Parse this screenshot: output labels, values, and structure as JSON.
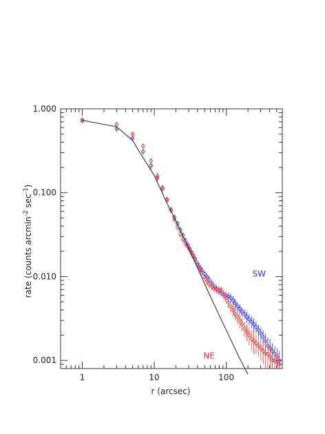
{
  "chart_data": {
    "type": "scatter",
    "title": "",
    "xlabel": "r (arcsec)",
    "ylabel_main": "rate (counts arcmin",
    "ylabel_exp1": "-2",
    "ylabel_mid": " sec",
    "ylabel_exp2": "-1",
    "ylabel_end": ")",
    "x_scale": "log",
    "y_scale": "log",
    "xlim": [
      0.5,
      600
    ],
    "ylim": [
      0.0008,
      1.0
    ],
    "x_ticks": [
      {
        "value": 1,
        "label": "1"
      },
      {
        "value": 10,
        "label": "10"
      },
      {
        "value": 100,
        "label": "100"
      }
    ],
    "y_ticks": [
      {
        "value": 1.0,
        "label": "1.000"
      },
      {
        "value": 0.1,
        "label": "0.100"
      },
      {
        "value": 0.01,
        "label": "0.010"
      },
      {
        "value": 0.001,
        "label": "0.001"
      }
    ],
    "grid": false,
    "annotations": [
      {
        "text": "SW",
        "x": 230,
        "y": 0.01,
        "color": "#3333ee"
      },
      {
        "text": "NE",
        "x": 48,
        "y": 0.00105,
        "color": "#ee3333"
      }
    ],
    "series": [
      {
        "color": "#3333ee",
        "marker": "open-circle",
        "x": [
          1,
          3,
          5,
          7,
          9,
          11,
          13,
          15,
          17,
          19,
          21,
          23,
          25,
          27,
          29,
          31,
          33,
          35,
          37,
          40,
          43,
          46,
          50,
          54,
          58,
          63,
          68,
          73,
          79,
          85,
          92,
          99,
          107,
          115,
          124,
          133,
          143,
          154,
          166,
          179,
          193,
          208,
          224,
          241,
          260,
          280,
          302,
          325,
          350,
          377,
          406,
          437,
          471,
          507,
          546
        ],
        "y": [
          0.72,
          0.58,
          0.45,
          0.31,
          0.21,
          0.15,
          0.112,
          0.082,
          0.063,
          0.051,
          0.043,
          0.036,
          0.031,
          0.027,
          0.024,
          0.0215,
          0.0195,
          0.0178,
          0.0162,
          0.0142,
          0.0128,
          0.0118,
          0.0108,
          0.0099,
          0.0091,
          0.0083,
          0.0076,
          0.0071,
          0.0067,
          0.0064,
          0.0061,
          0.0059,
          0.0058,
          0.0056,
          0.0052,
          0.0048,
          0.0044,
          0.0041,
          0.0038,
          0.0036,
          0.0033,
          0.0031,
          0.0029,
          0.0027,
          0.0025,
          0.0023,
          0.0021,
          0.0019,
          0.0017,
          0.0015,
          0.0014,
          0.0013,
          0.0012,
          0.0011,
          0.001
        ],
        "yerr": [
          0.05,
          0.05,
          0.04,
          0.03,
          0.02,
          0.015,
          0.01,
          0.007,
          0.005,
          0.004,
          0.0035,
          0.003,
          0.0025,
          0.0022,
          0.002,
          0.0018,
          0.0016,
          0.0015,
          0.0014,
          0.0013,
          0.0012,
          0.0011,
          0.001,
          0.0009,
          0.0009,
          0.0008,
          0.0008,
          0.0008,
          0.0007,
          0.0007,
          0.0007,
          0.0007,
          0.0007,
          0.0007,
          0.0006,
          0.0006,
          0.0006,
          0.0006,
          0.0005,
          0.0005,
          0.0005,
          0.0005,
          0.0005,
          0.0005,
          0.0004,
          0.0004,
          0.0004,
          0.0004,
          0.0004,
          0.0004,
          0.0004,
          0.0003,
          0.0003,
          0.0003,
          0.0003
        ]
      },
      {
        "color": "#ee3333",
        "marker": "open-circle",
        "x": [
          1,
          3,
          5,
          7,
          9,
          11,
          13,
          15,
          17,
          19,
          21,
          23,
          25,
          27,
          29,
          31,
          33,
          35,
          37,
          40,
          43,
          46,
          50,
          54,
          58,
          63,
          68,
          73,
          79,
          85,
          92,
          99,
          107,
          115,
          124,
          133,
          143,
          154,
          166,
          179,
          193,
          208,
          224,
          241,
          260,
          280,
          302,
          325,
          350,
          377,
          406,
          437,
          471,
          507,
          546
        ],
        "y": [
          0.74,
          0.65,
          0.5,
          0.36,
          0.24,
          0.158,
          0.115,
          0.083,
          0.062,
          0.048,
          0.039,
          0.032,
          0.028,
          0.025,
          0.023,
          0.021,
          0.019,
          0.0172,
          0.0158,
          0.0138,
          0.0123,
          0.0112,
          0.0098,
          0.0088,
          0.0081,
          0.0076,
          0.0072,
          0.0071,
          0.007,
          0.0069,
          0.0062,
          0.0055,
          0.0049,
          0.0044,
          0.004,
          0.0036,
          0.0033,
          0.003,
          0.0027,
          0.0024,
          0.0022,
          0.002,
          0.0018,
          0.0017,
          0.0016,
          0.0015,
          0.0014,
          0.0013,
          0.0012,
          0.0012,
          0.0011,
          0.001,
          0.001,
          0.00095,
          0.0009
        ],
        "yerr": [
          0.05,
          0.05,
          0.04,
          0.03,
          0.02,
          0.015,
          0.01,
          0.007,
          0.005,
          0.004,
          0.0035,
          0.003,
          0.0025,
          0.0022,
          0.002,
          0.0018,
          0.0016,
          0.0015,
          0.0014,
          0.0013,
          0.0012,
          0.0011,
          0.001,
          0.0009,
          0.0009,
          0.0008,
          0.0008,
          0.0008,
          0.0007,
          0.0007,
          0.0007,
          0.0007,
          0.0007,
          0.0007,
          0.0006,
          0.0006,
          0.0006,
          0.0006,
          0.0005,
          0.0005,
          0.0005,
          0.0005,
          0.0005,
          0.0005,
          0.0004,
          0.0004,
          0.0004,
          0.0004,
          0.0004,
          0.0004,
          0.0004,
          0.0003,
          0.0003,
          0.0003,
          0.0003
        ]
      },
      {
        "color": "#333333",
        "marker": "line",
        "x": [
          1,
          3,
          5,
          7,
          10,
          15,
          20,
          30,
          50,
          70,
          100,
          150,
          200
        ],
        "y": [
          0.73,
          0.61,
          0.42,
          0.26,
          0.16,
          0.075,
          0.046,
          0.022,
          0.0082,
          0.0044,
          0.0023,
          0.0011,
          0.00068
        ]
      }
    ]
  }
}
